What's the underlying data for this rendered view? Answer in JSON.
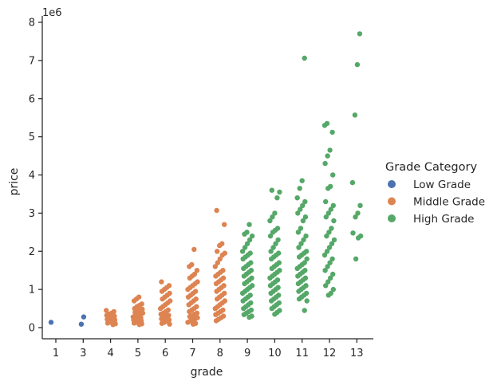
{
  "chart_data": {
    "type": "scatter",
    "xlabel": "grade",
    "ylabel": "price",
    "y_offset_label": "1e6",
    "y_unit_scale": 1000000,
    "ylim": [
      -0.3,
      8.1
    ],
    "yticks": [
      0,
      1,
      2,
      3,
      4,
      5,
      6,
      7,
      8
    ],
    "categories": [
      "1",
      "3",
      "4",
      "5",
      "6",
      "7",
      "8",
      "9",
      "10",
      "11",
      "12",
      "13"
    ],
    "legend": {
      "title": "Grade Category",
      "placement": "right",
      "entries": [
        {
          "name": "Low Grade",
          "color": "#4c72b0"
        },
        {
          "name": "Middle Grade",
          "color": "#dd8452"
        },
        {
          "name": "High Grade",
          "color": "#55a868"
        }
      ]
    },
    "groups": [
      {
        "category": "1",
        "series": "Low Grade",
        "points": [
          0.14
        ]
      },
      {
        "category": "3",
        "series": "Low Grade",
        "points": [
          0.28,
          0.09
        ]
      },
      {
        "category": "4",
        "series": "Middle Grade",
        "points": [
          0.45,
          0.42,
          0.38,
          0.35,
          0.32,
          0.3,
          0.28,
          0.25,
          0.22,
          0.2,
          0.18,
          0.15,
          0.12,
          0.1,
          0.08
        ]
      },
      {
        "category": "5",
        "series": "Middle Grade",
        "points": [
          0.8,
          0.75,
          0.7,
          0.62,
          0.58,
          0.55,
          0.5,
          0.48,
          0.45,
          0.42,
          0.4,
          0.38,
          0.35,
          0.33,
          0.3,
          0.28,
          0.26,
          0.24,
          0.22,
          0.2,
          0.18,
          0.16,
          0.14,
          0.12,
          0.1,
          0.08
        ]
      },
      {
        "category": "6",
        "series": "Middle Grade",
        "points": [
          1.2,
          1.1,
          1.05,
          1.0,
          0.95,
          0.9,
          0.85,
          0.8,
          0.75,
          0.7,
          0.65,
          0.6,
          0.55,
          0.5,
          0.46,
          0.42,
          0.38,
          0.35,
          0.32,
          0.29,
          0.26,
          0.23,
          0.2,
          0.17,
          0.14,
          0.11,
          0.09
        ]
      },
      {
        "category": "7",
        "series": "Middle Grade",
        "points": [
          2.05,
          1.65,
          1.6,
          1.5,
          1.4,
          1.35,
          1.3,
          1.2,
          1.15,
          1.1,
          1.05,
          1.0,
          0.95,
          0.9,
          0.85,
          0.8,
          0.75,
          0.7,
          0.65,
          0.6,
          0.55,
          0.5,
          0.46,
          0.42,
          0.38,
          0.35,
          0.32,
          0.29,
          0.26,
          0.23,
          0.2,
          0.17,
          0.14,
          0.11,
          0.09
        ]
      },
      {
        "category": "8",
        "series": "Middle Grade",
        "points": [
          3.07,
          2.7,
          2.2,
          2.15,
          2.0,
          1.95,
          1.9,
          1.8,
          1.7,
          1.6,
          1.5,
          1.45,
          1.4,
          1.35,
          1.3,
          1.25,
          1.2,
          1.15,
          1.1,
          1.05,
          1.0,
          0.95,
          0.9,
          0.85,
          0.8,
          0.75,
          0.7,
          0.65,
          0.6,
          0.55,
          0.5,
          0.46,
          0.42,
          0.38,
          0.34,
          0.3,
          0.26,
          0.22,
          0.18
        ]
      },
      {
        "category": "9",
        "series": "High Grade",
        "points": [
          2.7,
          2.5,
          2.45,
          2.4,
          2.3,
          2.2,
          2.1,
          2.0,
          1.95,
          1.9,
          1.85,
          1.8,
          1.7,
          1.65,
          1.6,
          1.55,
          1.5,
          1.45,
          1.4,
          1.35,
          1.3,
          1.25,
          1.2,
          1.15,
          1.1,
          1.05,
          1.0,
          0.95,
          0.9,
          0.85,
          0.8,
          0.75,
          0.7,
          0.65,
          0.6,
          0.55,
          0.5,
          0.46,
          0.42,
          0.38,
          0.34,
          0.3,
          0.27
        ]
      },
      {
        "category": "10",
        "series": "High Grade",
        "points": [
          3.6,
          3.55,
          3.4,
          3.0,
          2.9,
          2.8,
          2.6,
          2.55,
          2.5,
          2.4,
          2.3,
          2.2,
          2.1,
          2.0,
          1.95,
          1.9,
          1.85,
          1.8,
          1.7,
          1.65,
          1.6,
          1.55,
          1.5,
          1.45,
          1.4,
          1.35,
          1.3,
          1.25,
          1.2,
          1.15,
          1.1,
          1.05,
          1.0,
          0.95,
          0.9,
          0.85,
          0.8,
          0.75,
          0.7,
          0.65,
          0.6,
          0.55,
          0.5,
          0.45,
          0.4,
          0.35
        ]
      },
      {
        "category": "11",
        "series": "High Grade",
        "points": [
          7.06,
          3.85,
          3.65,
          3.4,
          3.3,
          3.2,
          3.1,
          3.0,
          2.9,
          2.8,
          2.6,
          2.5,
          2.4,
          2.3,
          2.2,
          2.1,
          2.0,
          1.95,
          1.9,
          1.85,
          1.8,
          1.7,
          1.65,
          1.6,
          1.55,
          1.5,
          1.45,
          1.4,
          1.35,
          1.3,
          1.25,
          1.2,
          1.15,
          1.1,
          1.05,
          1.0,
          0.95,
          0.9,
          0.85,
          0.8,
          0.75,
          0.7,
          0.45
        ]
      },
      {
        "category": "12",
        "series": "High Grade",
        "points": [
          5.35,
          5.3,
          5.12,
          4.65,
          4.5,
          4.3,
          4.0,
          3.7,
          3.65,
          3.3,
          3.2,
          3.1,
          3.0,
          2.9,
          2.8,
          2.6,
          2.5,
          2.4,
          2.3,
          2.2,
          2.1,
          2.0,
          1.9,
          1.8,
          1.7,
          1.6,
          1.5,
          1.4,
          1.3,
          1.2,
          1.1,
          1.0,
          0.9,
          0.85
        ]
      },
      {
        "category": "13",
        "series": "High Grade",
        "points": [
          7.7,
          6.89,
          5.57,
          3.8,
          3.2,
          3.0,
          2.9,
          2.48,
          2.4,
          2.35,
          1.8
        ]
      }
    ]
  }
}
